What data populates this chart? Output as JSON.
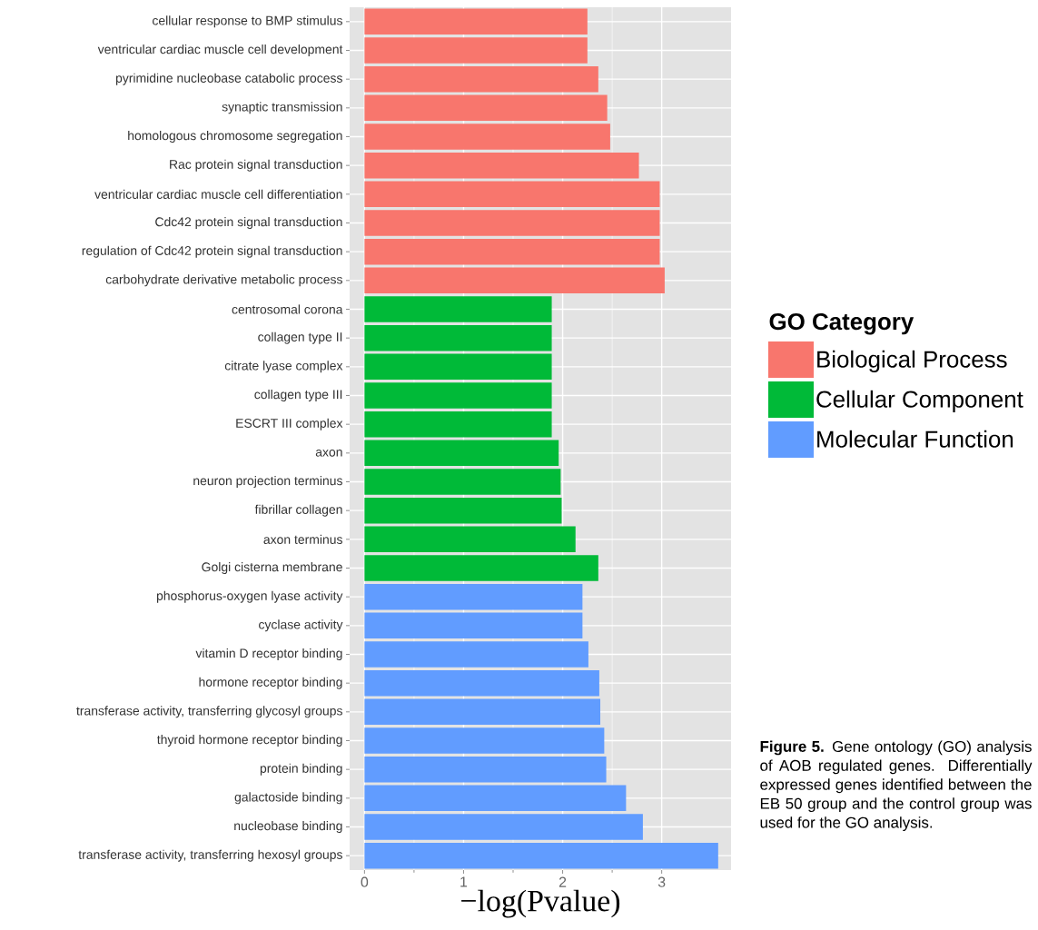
{
  "chart_data": {
    "type": "bar",
    "orientation": "horizontal",
    "xlabel": "−log(Pvalue)",
    "legend_title": "GO Category",
    "legend": "right",
    "grid": true,
    "categories": [
      "cellular response to BMP stimulus",
      "ventricular cardiac muscle cell development",
      "pyrimidine nucleobase catabolic process",
      "synaptic transmission",
      "homologous chromosome segregation",
      "Rac protein signal transduction",
      "ventricular cardiac muscle cell differentiation",
      "Cdc42 protein signal transduction",
      "regulation of Cdc42 protein signal transduction",
      "carbohydrate derivative metabolic process",
      "centrosomal corona",
      "collagen type II",
      "citrate lyase complex",
      "collagen type III",
      "ESCRT III complex",
      "axon",
      "neuron projection terminus",
      "fibrillar collagen",
      "axon terminus",
      "Golgi cisterna membrane",
      "phosphorus-oxygen lyase activity",
      "cyclase activity",
      "vitamin D receptor binding",
      "hormone receptor binding",
      "transferase activity, transferring glycosyl groups",
      "thyroid hormone receptor binding",
      "protein binding",
      "galactoside binding",
      "nucleobase binding",
      "transferase activity, transferring hexosyl groups"
    ],
    "series": [
      {
        "name": "Biological Process",
        "color": "#f8766d",
        "values": [
          2.25,
          2.25,
          2.36,
          2.45,
          2.48,
          2.77,
          2.98,
          2.98,
          2.98,
          3.03,
          null,
          null,
          null,
          null,
          null,
          null,
          null,
          null,
          null,
          null,
          null,
          null,
          null,
          null,
          null,
          null,
          null,
          null,
          null,
          null
        ]
      },
      {
        "name": "Cellular Component",
        "color": "#00ba38",
        "values": [
          null,
          null,
          null,
          null,
          null,
          null,
          null,
          null,
          null,
          null,
          1.89,
          1.89,
          1.89,
          1.89,
          1.89,
          1.96,
          1.98,
          1.99,
          2.13,
          2.36,
          null,
          null,
          null,
          null,
          null,
          null,
          null,
          null,
          null,
          null
        ]
      },
      {
        "name": "Molecular Function",
        "color": "#619cff",
        "values": [
          null,
          null,
          null,
          null,
          null,
          null,
          null,
          null,
          null,
          null,
          null,
          null,
          null,
          null,
          null,
          null,
          null,
          null,
          null,
          null,
          2.2,
          2.2,
          2.26,
          2.37,
          2.38,
          2.42,
          2.44,
          2.64,
          2.81,
          3.57
        ]
      }
    ],
    "xlim": [
      -0.15,
      3.7
    ],
    "xticks": [
      0,
      1,
      2,
      3
    ],
    "annotations": [
      "**Figure 5.** Gene ontology (GO) analysis of AOB regulated genes. Differentially expressed genes identified between the EB 50 group and the control group was used for the GO analysis."
    ]
  }
}
